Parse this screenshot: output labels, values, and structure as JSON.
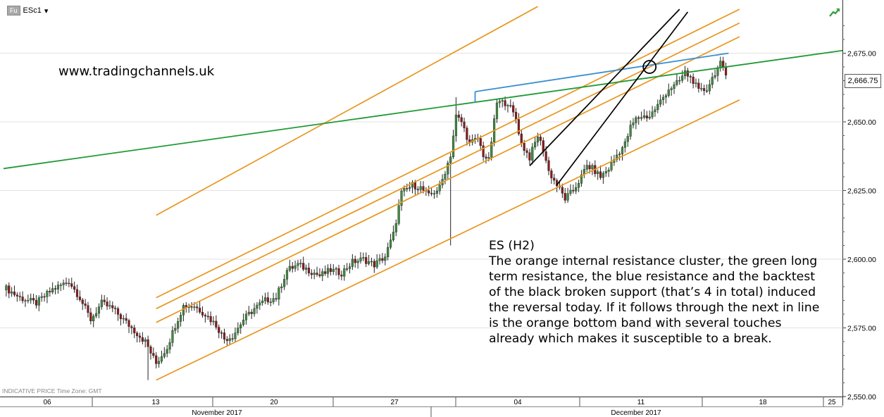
{
  "header": {
    "symbol_tag": "Fu",
    "symbol": "ESc1",
    "dropdown_glyph": "▾",
    "trend_icon": "green-trend-arrow-icon"
  },
  "watermark": "www.tradingchannels.uk",
  "commentary": {
    "title": "ES (H2)",
    "body": "The orange internal resistance cluster, the green long term resistance, the blue resistance and the backtest of the black broken support (that’s 4 in total) induced the reversal today. If it follows through the next in line is the orange bottom band with several touches already which makes it susceptible to a break."
  },
  "footer_note": "INDICATIVE PRICE   Time Zone: GMT",
  "last_price_label": "2,666.75",
  "colors": {
    "up_candle": "#3f8a3f",
    "down_candle": "#8b1a1a",
    "orange_channel": "#e8961e",
    "green_line": "#1f9a35",
    "blue_line": "#3a8fd0",
    "black_channel": "#000000",
    "grid": "#e2e2e2"
  },
  "chart_data": {
    "type": "candlestick",
    "title": "",
    "ylim": [
      2550,
      2690
    ],
    "y_ticks": [
      2550,
      2575,
      2600,
      2625,
      2650,
      2675
    ],
    "y_tick_labels": [
      "2,550.00",
      "2,575.00",
      "2,600.00",
      "2,625.00",
      "2,650.00",
      "2,675.00"
    ],
    "x_ticks": [
      "06",
      "13",
      "20",
      "27",
      "04",
      "11",
      "18",
      "25"
    ],
    "x_month_labels": [
      "November 2017",
      "December 2017"
    ],
    "close_path": [
      [
        0,
        2590
      ],
      [
        6,
        2586
      ],
      [
        12,
        2584
      ],
      [
        18,
        2589
      ],
      [
        24,
        2592
      ],
      [
        28,
        2586
      ],
      [
        32,
        2578
      ],
      [
        36,
        2584
      ],
      [
        40,
        2582
      ],
      [
        44,
        2578
      ],
      [
        48,
        2574
      ],
      [
        52,
        2570
      ],
      [
        54,
        2566
      ],
      [
        56,
        2562
      ],
      [
        60,
        2568
      ],
      [
        63,
        2576
      ],
      [
        66,
        2583
      ],
      [
        70,
        2583
      ],
      [
        74,
        2580
      ],
      [
        78,
        2576
      ],
      [
        81,
        2571
      ],
      [
        84,
        2572
      ],
      [
        88,
        2578
      ],
      [
        92,
        2582
      ],
      [
        96,
        2585
      ],
      [
        100,
        2586
      ],
      [
        104,
        2596
      ],
      [
        108,
        2598
      ],
      [
        112,
        2596
      ],
      [
        116,
        2594
      ],
      [
        120,
        2596
      ],
      [
        124,
        2595
      ],
      [
        128,
        2599
      ],
      [
        132,
        2600
      ],
      [
        136,
        2598
      ],
      [
        140,
        2601
      ],
      [
        143,
        2609
      ],
      [
        146,
        2624
      ],
      [
        150,
        2627
      ],
      [
        153,
        2626
      ],
      [
        156,
        2623
      ],
      [
        160,
        2626
      ],
      [
        164,
        2638
      ],
      [
        166,
        2652
      ],
      [
        168,
        2650
      ],
      [
        171,
        2642
      ],
      [
        174,
        2644
      ],
      [
        176,
        2638
      ],
      [
        178,
        2636
      ],
      [
        181,
        2657
      ],
      [
        185,
        2657
      ],
      [
        188,
        2651
      ],
      [
        190,
        2642
      ],
      [
        193,
        2637
      ],
      [
        196,
        2645
      ],
      [
        198,
        2640
      ],
      [
        200,
        2632
      ],
      [
        203,
        2627
      ],
      [
        206,
        2622
      ],
      [
        209,
        2625
      ],
      [
        212,
        2630
      ],
      [
        214,
        2634
      ],
      [
        216,
        2633
      ],
      [
        219,
        2630
      ],
      [
        222,
        2633
      ],
      [
        225,
        2638
      ],
      [
        228,
        2642
      ],
      [
        230,
        2648
      ],
      [
        232,
        2651
      ],
      [
        234,
        2652
      ],
      [
        237,
        2652
      ],
      [
        240,
        2656
      ],
      [
        242,
        2659
      ],
      [
        244,
        2662
      ],
      [
        246,
        2663
      ],
      [
        248,
        2665
      ],
      [
        250,
        2668
      ],
      [
        253,
        2665
      ],
      [
        255,
        2661
      ],
      [
        258,
        2662
      ],
      [
        261,
        2668
      ],
      [
        263,
        2671
      ],
      [
        265,
        2667
      ]
    ],
    "lines": [
      {
        "name": "",
        "color": "orange",
        "points": [
          [
            56,
            2616
          ],
          [
            196,
            2692
          ]
        ]
      },
      {
        "name": "",
        "color": "orange",
        "points": [
          [
            56,
            2586
          ],
          [
            270,
            2691
          ]
        ]
      },
      {
        "name": "",
        "color": "orange",
        "points": [
          [
            56,
            2582
          ],
          [
            270,
            2686
          ]
        ]
      },
      {
        "name": "",
        "color": "orange",
        "points": [
          [
            56,
            2577
          ],
          [
            270,
            2681
          ]
        ]
      },
      {
        "name": "",
        "color": "orange",
        "points": [
          [
            56,
            2556
          ],
          [
            270,
            2658
          ]
        ]
      },
      {
        "name": "",
        "color": "green",
        "points": [
          [
            0,
            2633
          ],
          [
            308,
            2676
          ]
        ]
      },
      {
        "name": "",
        "color": "blue",
        "points": [
          [
            173,
            2661
          ],
          [
            266,
            2675
          ]
        ]
      },
      {
        "name": "",
        "color": "black",
        "points": [
          [
            193,
            2634
          ],
          [
            248,
            2691
          ]
        ]
      },
      {
        "name": "",
        "color": "black",
        "points": [
          [
            203,
            2627
          ],
          [
            251,
            2690
          ]
        ]
      }
    ],
    "markers": [
      {
        "type": "circle",
        "x": 237,
        "y": 2670
      }
    ]
  }
}
